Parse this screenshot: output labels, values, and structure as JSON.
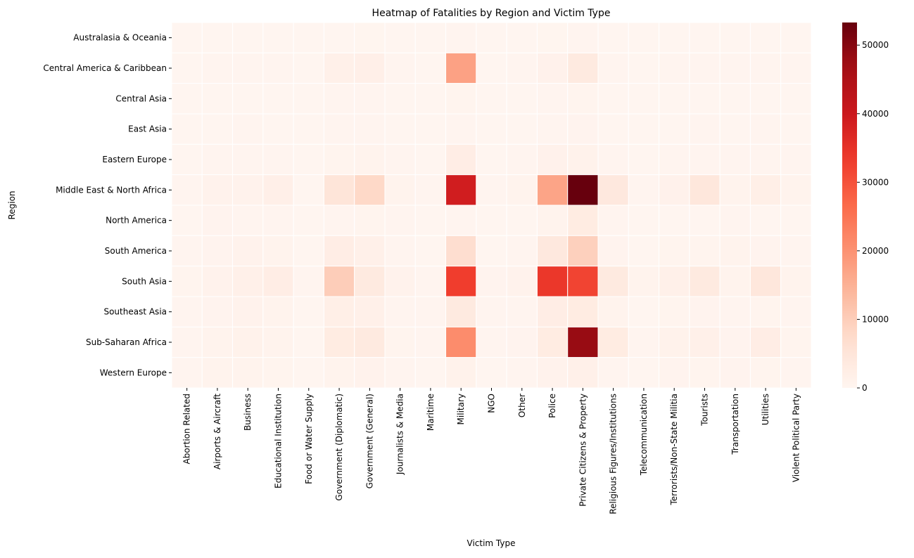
{
  "chart_data": {
    "type": "heatmap",
    "title": "Heatmap of Fatalities by Region and Victim Type",
    "xlabel": "Victim Type",
    "ylabel": "Region",
    "colormap": "Reds",
    "vmin": 0,
    "vmax": 53300,
    "colorbar_ticks": [
      0,
      10000,
      20000,
      30000,
      40000,
      50000
    ],
    "colorbar_tick_labels": [
      "0",
      "10000",
      "20000",
      "30000",
      "40000",
      "50000"
    ],
    "columns": [
      "Abortion Related",
      "Airports & Aircraft",
      "Business",
      "Educational Institution",
      "Food or Water Supply",
      "Government (Diplomatic)",
      "Government (General)",
      "Journalists & Media",
      "Maritime",
      "Military",
      "NGO",
      "Other",
      "Police",
      "Private Citizens & Property",
      "Religious Figures/Institutions",
      "Telecommunication",
      "Terrorists/Non-State Militia",
      "Tourists",
      "Transportation",
      "Utilities",
      "Violent Political Party"
    ],
    "rows": [
      "Australasia & Oceania",
      "Central America & Caribbean",
      "Central Asia",
      "East Asia",
      "Eastern Europe",
      "Middle East & North Africa",
      "North America",
      "South America",
      "South Asia",
      "Southeast Asia",
      "Sub-Saharan Africa",
      "Western Europe"
    ],
    "values": [
      [
        0,
        50,
        20,
        10,
        0,
        100,
        150,
        10,
        0,
        200,
        10,
        10,
        150,
        200,
        20,
        0,
        20,
        30,
        10,
        10,
        0
      ],
      [
        100,
        300,
        300,
        200,
        50,
        1500,
        1800,
        200,
        50,
        17500,
        100,
        200,
        1200,
        3500,
        200,
        50,
        300,
        300,
        200,
        300,
        200
      ],
      [
        50,
        100,
        100,
        50,
        10,
        200,
        300,
        50,
        10,
        400,
        10,
        50,
        300,
        400,
        50,
        10,
        100,
        100,
        50,
        100,
        50
      ],
      [
        50,
        100,
        200,
        100,
        10,
        200,
        300,
        100,
        50,
        300,
        20,
        50,
        300,
        500,
        100,
        10,
        100,
        200,
        100,
        200,
        50
      ],
      [
        100,
        200,
        300,
        200,
        20,
        400,
        600,
        200,
        50,
        2500,
        50,
        200,
        1200,
        1000,
        200,
        50,
        300,
        300,
        300,
        300,
        200
      ],
      [
        300,
        800,
        900,
        1800,
        100,
        5000,
        8000,
        600,
        300,
        39000,
        300,
        600,
        17000,
        53300,
        4000,
        300,
        1200,
        4500,
        700,
        2000,
        600
      ],
      [
        50,
        500,
        300,
        200,
        20,
        300,
        400,
        200,
        50,
        300,
        20,
        100,
        600,
        3000,
        200,
        20,
        100,
        100,
        200,
        100,
        100
      ],
      [
        200,
        500,
        800,
        600,
        50,
        2500,
        1500,
        300,
        100,
        7000,
        100,
        300,
        4000,
        9500,
        500,
        100,
        400,
        400,
        600,
        500,
        300
      ],
      [
        400,
        800,
        1500,
        2500,
        200,
        10000,
        3500,
        800,
        300,
        33000,
        500,
        800,
        34000,
        32000,
        3500,
        600,
        1500,
        3500,
        600,
        4500,
        600
      ],
      [
        200,
        500,
        800,
        600,
        50,
        2000,
        1500,
        300,
        200,
        3500,
        200,
        300,
        2500,
        3000,
        600,
        100,
        400,
        500,
        300,
        400,
        200
      ],
      [
        300,
        700,
        1000,
        700,
        100,
        3000,
        3500,
        400,
        200,
        21000,
        300,
        500,
        3000,
        48000,
        3000,
        300,
        1000,
        1500,
        500,
        2500,
        400
      ],
      [
        200,
        600,
        600,
        400,
        20,
        700,
        900,
        300,
        100,
        1000,
        50,
        300,
        800,
        1500,
        300,
        50,
        500,
        400,
        500,
        400,
        200
      ]
    ]
  }
}
